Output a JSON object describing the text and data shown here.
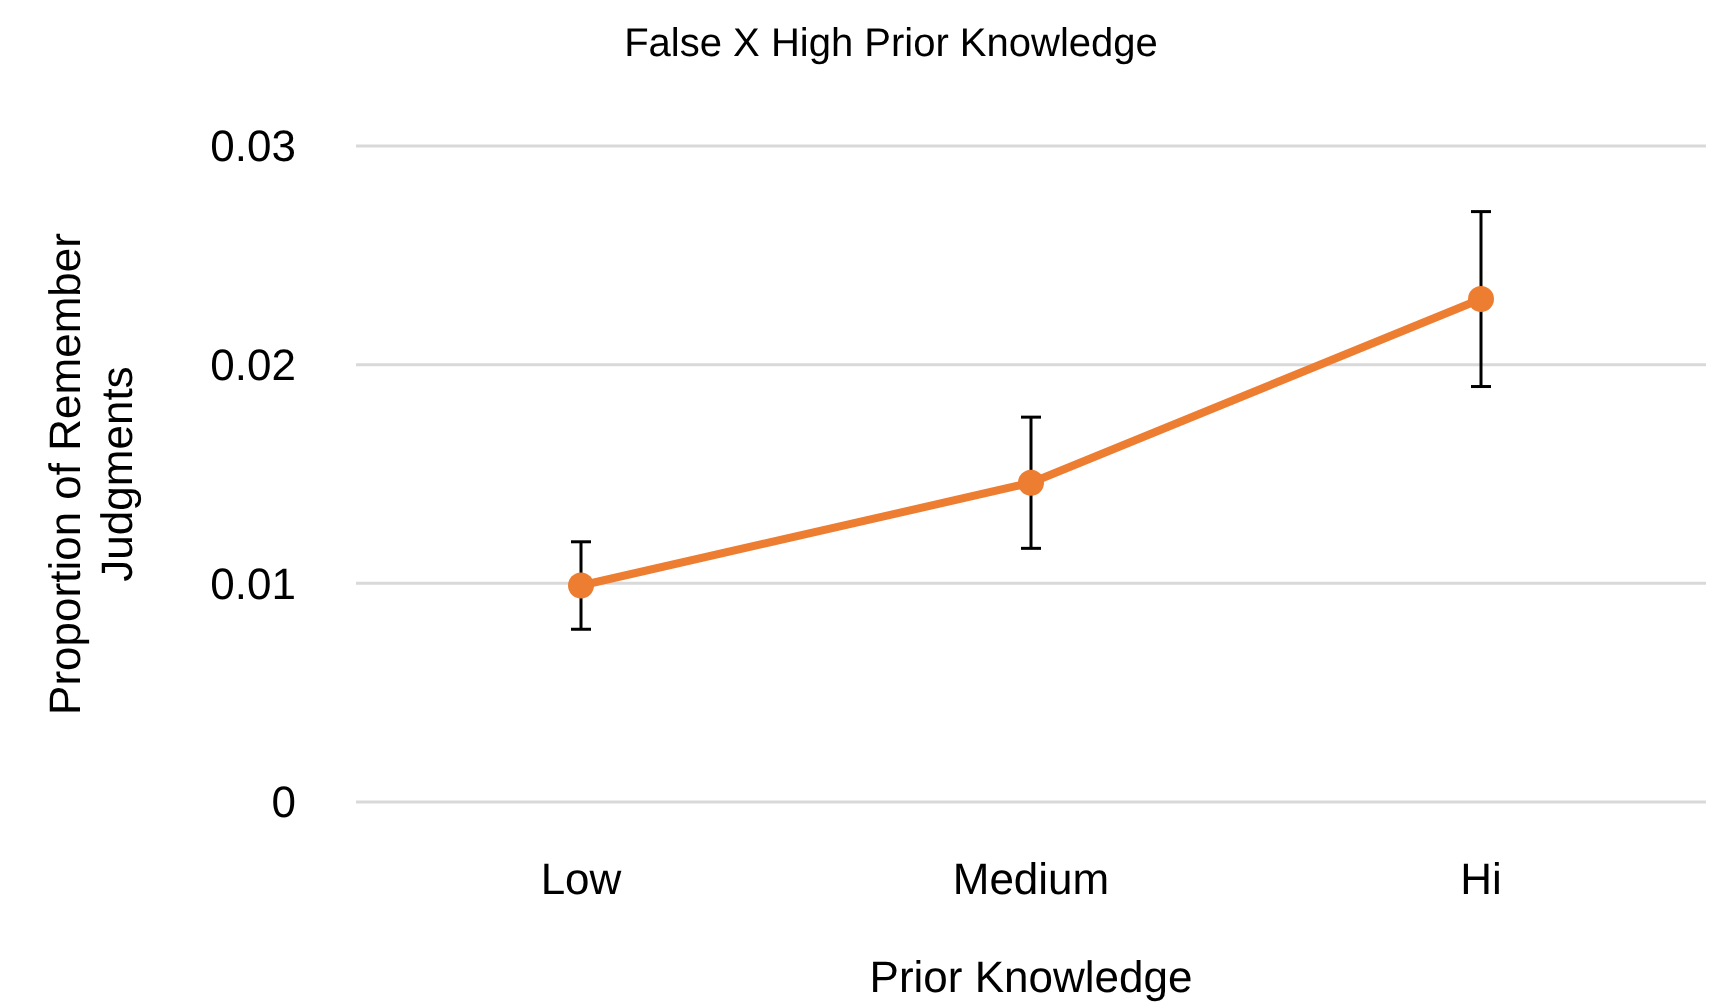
{
  "chart_data": {
    "type": "line",
    "title": "False X High Prior Knowledge",
    "xlabel": "Prior Knowledge",
    "ylabel": "Proportion of Remember Judgments",
    "categories": [
      "Low",
      "Medium",
      "Hi"
    ],
    "series": [
      {
        "color": "#ed7d31",
        "values": [
          0.0099,
          0.0146,
          0.023
        ],
        "errors": [
          0.002,
          0.003,
          0.004
        ]
      }
    ],
    "ylim": [
      0,
      0.03
    ],
    "yticks": [
      0,
      0.01,
      0.02,
      0.03
    ],
    "grid": "y",
    "marker": "circle",
    "line_style": "solid"
  }
}
